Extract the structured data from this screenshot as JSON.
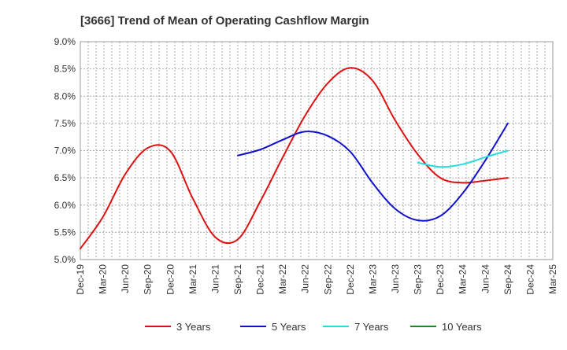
{
  "chart_data": {
    "type": "line",
    "title": "[3666]  Trend of Mean of Operating Cashflow Margin",
    "xlabel": "",
    "ylabel": "",
    "ylim": [
      5.0,
      9.0
    ],
    "yticks": [
      "5.0%",
      "5.5%",
      "6.0%",
      "6.5%",
      "7.0%",
      "7.5%",
      "8.0%",
      "8.5%",
      "9.0%"
    ],
    "categories": [
      "Dec-19",
      "Mar-20",
      "Jun-20",
      "Sep-20",
      "Dec-20",
      "Mar-21",
      "Jun-21",
      "Sep-21",
      "Dec-21",
      "Mar-22",
      "Jun-22",
      "Sep-22",
      "Dec-22",
      "Mar-23",
      "Jun-23",
      "Sep-23",
      "Dec-23",
      "Mar-24",
      "Jun-24",
      "Sep-24",
      "Dec-24",
      "Mar-25"
    ],
    "grid": true,
    "legend_position": "bottom",
    "series": [
      {
        "name": "3 Years",
        "color": "#dd1111",
        "values": [
          5.2,
          5.78,
          6.57,
          7.05,
          6.99,
          6.12,
          5.41,
          5.37,
          6.07,
          6.88,
          7.65,
          8.24,
          8.52,
          8.28,
          7.55,
          6.93,
          6.5,
          6.41,
          6.45,
          6.5,
          null,
          null
        ]
      },
      {
        "name": "5 Years",
        "color": "#1111cc",
        "values": [
          null,
          null,
          null,
          null,
          null,
          null,
          null,
          6.91,
          7.02,
          7.2,
          7.35,
          7.27,
          6.98,
          6.4,
          5.93,
          5.72,
          5.8,
          6.22,
          6.82,
          7.5,
          null,
          null
        ]
      },
      {
        "name": "7 Years",
        "color": "#22dddd",
        "values": [
          null,
          null,
          null,
          null,
          null,
          null,
          null,
          null,
          null,
          null,
          null,
          null,
          null,
          null,
          null,
          6.78,
          6.7,
          6.75,
          6.88,
          7.0,
          null,
          null
        ]
      },
      {
        "name": "10 Years",
        "color": "#228822",
        "values": [
          null,
          null,
          null,
          null,
          null,
          null,
          null,
          null,
          null,
          null,
          null,
          null,
          null,
          null,
          null,
          null,
          null,
          null,
          null,
          null,
          null,
          null
        ]
      }
    ]
  }
}
